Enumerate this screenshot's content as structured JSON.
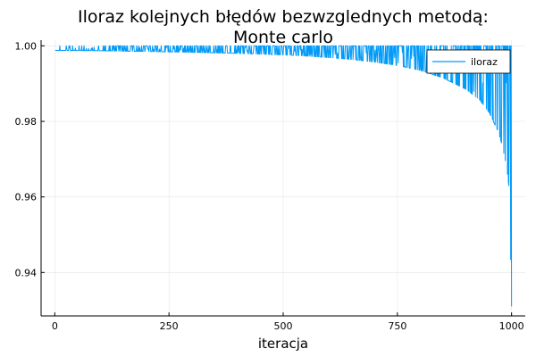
{
  "chart_data": {
    "type": "line",
    "title_lines": [
      "Iloraz kolejnych błędów bezwzglednych metodą:",
      "Monte carlo"
    ],
    "xlabel": "iteracja",
    "ylabel": "",
    "xlim": [
      -30,
      1030
    ],
    "ylim": [
      0.9285,
      1.0015
    ],
    "xticks": [
      0,
      250,
      500,
      750,
      1000
    ],
    "xtick_labels": [
      "0",
      "250",
      "500",
      "750",
      "1000"
    ],
    "yticks": [
      0.94,
      0.96,
      0.98,
      1.0
    ],
    "ytick_labels": [
      "0.94",
      "0.96",
      "0.98",
      "1.00"
    ],
    "grid": true,
    "legend_position": "top-right",
    "series": [
      {
        "name": "iloraz",
        "color": "#009af9",
        "lower_envelope": {
          "x": [
            1,
            100,
            200,
            300,
            400,
            500,
            550,
            600,
            650,
            700,
            750,
            800,
            850,
            900,
            930,
            950,
            970,
            980,
            990,
            995,
            1000
          ],
          "y": [
            0.9988,
            0.9987,
            0.9985,
            0.9983,
            0.998,
            0.9976,
            0.9973,
            0.9969,
            0.9964,
            0.9957,
            0.9948,
            0.9935,
            0.9915,
            0.9885,
            0.9857,
            0.9825,
            0.9775,
            0.9735,
            0.967,
            0.962,
            0.931
          ]
        },
        "upper_value": 1.0
      }
    ]
  }
}
